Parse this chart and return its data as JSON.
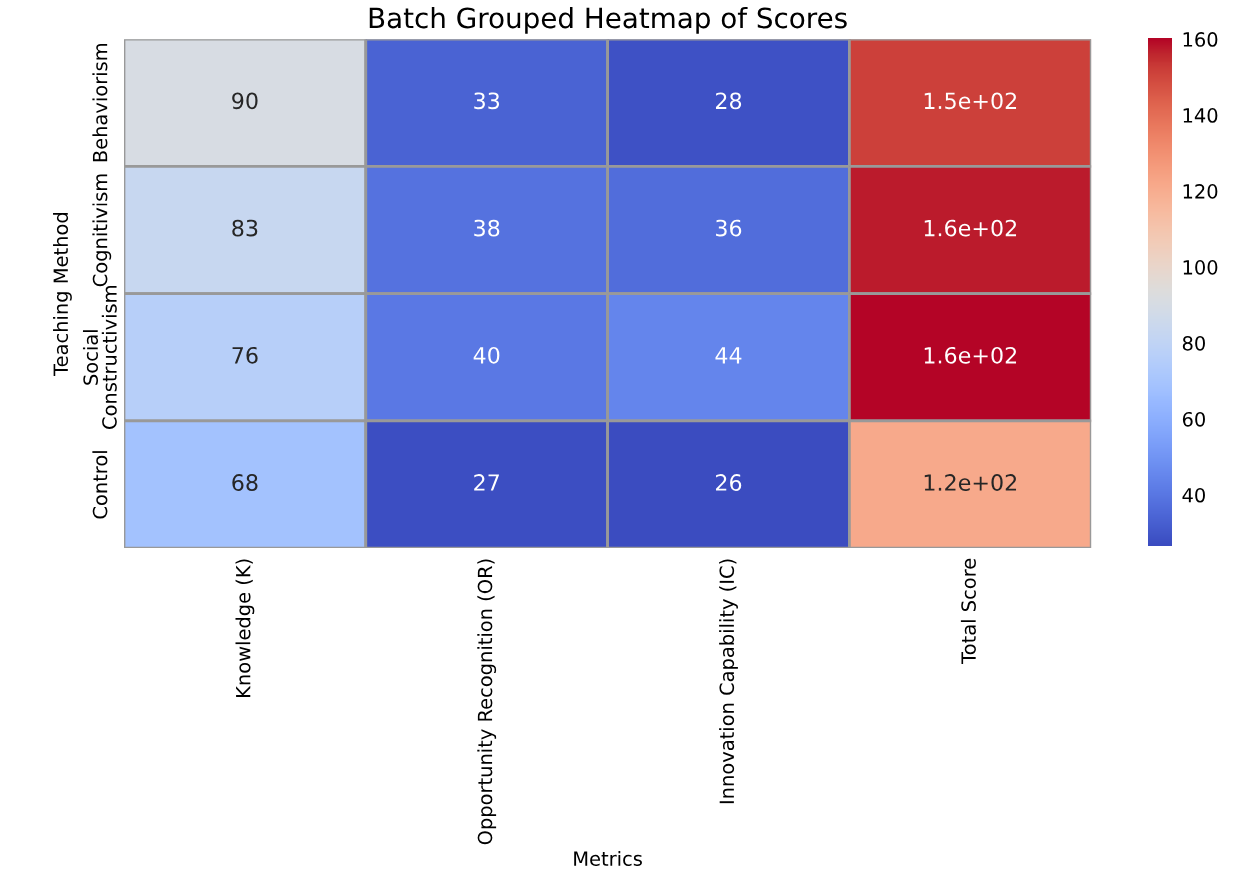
{
  "chart_data": {
    "type": "heatmap",
    "title": "Batch Grouped Heatmap of Scores",
    "xlabel": "Metrics",
    "ylabel": "Teaching Method",
    "categories": [
      "Knowledge (K)",
      "Opportunity Recognition (OR)",
      "Innovation Capability (IC)",
      "Total Score"
    ],
    "y_categories": [
      "Behaviorism",
      "Cognitivism",
      "Social Constructivism",
      "Control"
    ],
    "cells": [
      [
        90,
        33,
        28,
        151
      ],
      [
        83,
        38,
        36,
        157
      ],
      [
        76,
        40,
        44,
        160
      ],
      [
        68,
        27,
        26,
        121
      ]
    ],
    "cell_labels": [
      [
        "90",
        "33",
        "28",
        "1.5e+02"
      ],
      [
        "83",
        "38",
        "36",
        "1.6e+02"
      ],
      [
        "76",
        "40",
        "44",
        "1.6e+02"
      ],
      [
        "68",
        "27",
        "26",
        "1.2e+02"
      ]
    ],
    "clim": [
      26,
      160
    ],
    "cticks": [
      40,
      60,
      80,
      100,
      120,
      140,
      160
    ]
  }
}
